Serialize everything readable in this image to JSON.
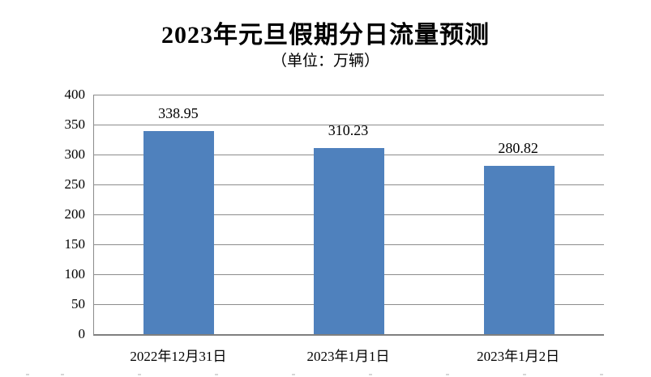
{
  "chart": {
    "title": "2023年元旦假期分日流量预测",
    "subtitle": "（单位：万辆）"
  },
  "chart_data": {
    "type": "bar",
    "title": "2023年元旦假期分日流量预测",
    "subtitle": "（单位：万辆）",
    "unit": "万辆",
    "categories": [
      "2022年12月31日",
      "2023年1月1日",
      "2023年1月2日"
    ],
    "values": [
      338.95,
      310.23,
      280.82
    ],
    "value_labels": [
      "338.95",
      "310.23",
      "280.82"
    ],
    "xlabel": "",
    "ylabel": "",
    "ylim": [
      0,
      400
    ],
    "ytick_step": 50,
    "ytick_labels": [
      "0",
      "50",
      "100",
      "150",
      "200",
      "250",
      "300",
      "350",
      "400"
    ],
    "grid": true,
    "legend": "none",
    "bar_color": "#4f81bd",
    "gridline_color": "#8c8c8c",
    "axis_color": "#7f7f7f",
    "background_color": "#ffffff"
  }
}
